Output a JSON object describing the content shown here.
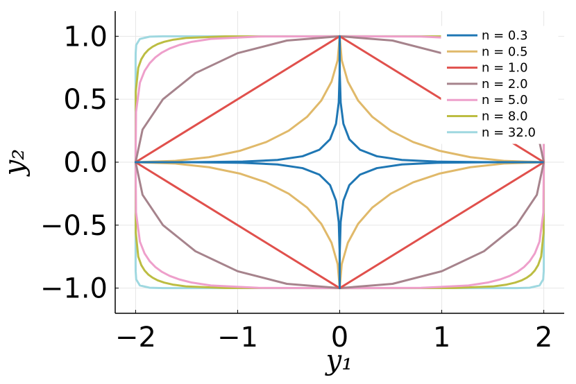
{
  "chart_data": {
    "type": "line",
    "xlabel": "y₁",
    "ylabel": "y₂",
    "xlim": [
      -2.2,
      2.2
    ],
    "ylim": [
      -1.2,
      1.2
    ],
    "xticks": [
      {
        "value": -2,
        "label": "−2"
      },
      {
        "value": -1,
        "label": "−1"
      },
      0,
      1,
      2
    ],
    "yticks": [
      {
        "value": -1,
        "label": "−1.0"
      },
      {
        "value": -0.5,
        "label": "−0.5"
      },
      {
        "value": 0,
        "label": "0.0"
      },
      {
        "value": 0.5,
        "label": "0.5"
      },
      {
        "value": 1,
        "label": "1.0"
      }
    ],
    "grid": true,
    "legend": "top-right",
    "series": [
      {
        "name": "n = 0.3",
        "color": "#1f77b4",
        "x": [
          2,
          1.408,
          0.95,
          0.61,
          0.364,
          0.1984,
          0.0944,
          0.0362,
          0.0094,
          0.0009,
          0,
          -0.0009,
          -0.0094,
          -0.0362,
          -0.0944,
          -0.1984,
          -0.364,
          -0.61,
          -0.95,
          -1.408,
          -2,
          -1.408,
          -0.95,
          -0.61,
          -0.364,
          -0.1984,
          -0.0944,
          -0.0362,
          -0.0094,
          -0.0009,
          0,
          0.0009,
          0.0094,
          0.0362,
          0.0944,
          0.1984,
          0.364,
          0.61,
          0.95,
          1.408,
          2
        ],
        "values": [
          0,
          0.0005,
          0.0047,
          0.0181,
          0.0472,
          0.0992,
          0.182,
          0.305,
          0.475,
          0.704,
          1,
          0.704,
          0.475,
          0.305,
          0.182,
          0.0992,
          0.0472,
          0.0181,
          0.0047,
          0.0005,
          0,
          -0.0005,
          -0.0047,
          -0.0181,
          -0.0472,
          -0.0992,
          -0.182,
          -0.305,
          -0.475,
          -0.704,
          -1,
          -0.704,
          -0.475,
          -0.305,
          -0.182,
          -0.0992,
          -0.0472,
          -0.0181,
          -0.0047,
          -0.0005,
          0
        ]
      },
      {
        "name": "n = 0.5",
        "color": "#e0b96a",
        "x": [
          2,
          1.62,
          1.28,
          0.98,
          0.72,
          0.5,
          0.32,
          0.18,
          0.08,
          0.02,
          0,
          -0.02,
          -0.08,
          -0.18,
          -0.32,
          -0.5,
          -0.72,
          -0.98,
          -1.28,
          -1.62,
          -2,
          -1.62,
          -1.28,
          -0.98,
          -0.72,
          -0.5,
          -0.32,
          -0.18,
          -0.08,
          -0.02,
          0,
          0.02,
          0.08,
          0.18,
          0.32,
          0.5,
          0.72,
          0.98,
          1.28,
          1.62,
          2
        ],
        "values": [
          0,
          0.01,
          0.04,
          0.09,
          0.16,
          0.25,
          0.36,
          0.49,
          0.64,
          0.81,
          1,
          0.81,
          0.64,
          0.49,
          0.36,
          0.25,
          0.16,
          0.09,
          0.04,
          0.01,
          0,
          -0.01,
          -0.04,
          -0.09,
          -0.16,
          -0.25,
          -0.36,
          -0.49,
          -0.64,
          -0.81,
          -1,
          -0.81,
          -0.64,
          -0.49,
          -0.36,
          -0.25,
          -0.16,
          -0.09,
          -0.04,
          -0.01,
          0
        ]
      },
      {
        "name": "n = 1.0",
        "color": "#e0504c",
        "x": [
          2,
          0,
          -2,
          0,
          2
        ],
        "values": [
          0,
          1,
          0,
          -1,
          0
        ]
      },
      {
        "name": "n = 2.0",
        "color": "#a6838c",
        "x": [
          2,
          1.932,
          1.732,
          1.414,
          1,
          0.518,
          0,
          -0.518,
          -1,
          -1.414,
          -1.732,
          -1.932,
          -2,
          -1.932,
          -1.732,
          -1.414,
          -1,
          -0.518,
          0,
          0.518,
          1,
          1.414,
          1.732,
          1.932,
          2
        ],
        "values": [
          0,
          0.259,
          0.5,
          0.707,
          0.866,
          0.966,
          1,
          0.966,
          0.866,
          0.707,
          0.5,
          0.259,
          0,
          -0.259,
          -0.5,
          -0.707,
          -0.866,
          -0.966,
          -1,
          -0.966,
          -0.866,
          -0.707,
          -0.5,
          -0.259,
          0
        ]
      },
      {
        "name": "n = 5.0",
        "color": "#ee9fcb",
        "x": [
          2,
          1.996,
          1.958,
          1.912,
          1.862,
          1.806,
          1.742,
          1.666,
          1.572,
          1.45,
          1.262,
          0.796,
          0,
          -0.796,
          -1.262,
          -1.45,
          -1.572,
          -1.666,
          -1.742,
          -1.806,
          -1.862,
          -1.912,
          -1.958,
          -1.996,
          -2,
          -1.996,
          -1.958,
          -1.912,
          -1.862,
          -1.806,
          -1.742,
          -1.666,
          -1.572,
          -1.45,
          -1.262,
          -0.796,
          0,
          0.796,
          1.262,
          1.45,
          1.572,
          1.666,
          1.742,
          1.806,
          1.862,
          1.912,
          1.958,
          1.996,
          2
        ],
        "values": [
          0,
          0.398,
          0.631,
          0.725,
          0.786,
          0.833,
          0.871,
          0.903,
          0.931,
          0.956,
          0.979,
          0.998,
          1,
          0.998,
          0.979,
          0.956,
          0.931,
          0.903,
          0.871,
          0.833,
          0.786,
          0.725,
          0.631,
          0.398,
          0,
          -0.398,
          -0.631,
          -0.725,
          -0.786,
          -0.833,
          -0.871,
          -0.903,
          -0.931,
          -0.956,
          -0.979,
          -0.998,
          -1,
          -0.998,
          -0.979,
          -0.956,
          -0.931,
          -0.903,
          -0.871,
          -0.833,
          -0.786,
          -0.725,
          -0.631,
          -0.398,
          0
        ]
      },
      {
        "name": "n = 8.0",
        "color": "#bcbd42",
        "x": [
          2,
          1.998,
          1.974,
          1.944,
          1.912,
          1.876,
          1.834,
          1.784,
          1.72,
          1.636,
          1.5,
          1.124,
          0,
          -1.124,
          -1.5,
          -1.636,
          -1.72,
          -1.784,
          -1.834,
          -1.876,
          -1.912,
          -1.944,
          -1.974,
          -1.998,
          -2,
          -1.998,
          -1.974,
          -1.944,
          -1.912,
          -1.876,
          -1.834,
          -1.784,
          -1.72,
          -1.636,
          -1.5,
          -1.124,
          0,
          1.124,
          1.5,
          1.636,
          1.72,
          1.784,
          1.834,
          1.876,
          1.912,
          1.944,
          1.974,
          1.998,
          2
        ],
        "values": [
          0,
          0.562,
          0.75,
          0.818,
          0.86,
          0.892,
          0.917,
          0.938,
          0.956,
          0.972,
          0.987,
          0.999,
          1,
          0.999,
          0.987,
          0.972,
          0.956,
          0.938,
          0.917,
          0.892,
          0.86,
          0.818,
          0.75,
          0.562,
          0,
          -0.562,
          -0.75,
          -0.818,
          -0.86,
          -0.892,
          -0.917,
          -0.938,
          -0.956,
          -0.972,
          -0.987,
          -0.999,
          -1,
          -0.999,
          -0.987,
          -0.972,
          -0.956,
          -0.938,
          -0.917,
          -0.892,
          -0.86,
          -0.818,
          -0.75,
          -0.562,
          0
        ]
      },
      {
        "name": "n = 32.0",
        "color": "#9fd8e0",
        "x": [
          2,
          2,
          1.9994,
          1.994,
          1.958,
          1.862,
          1.732,
          1.612,
          0,
          -1.612,
          -1.732,
          -1.862,
          -1.958,
          -1.994,
          -1.9994,
          -2,
          -2,
          -2,
          -1.9994,
          -1.994,
          -1.958,
          -1.862,
          -1.732,
          -1.612,
          0,
          1.612,
          1.732,
          1.862,
          1.958,
          1.994,
          1.9994,
          2,
          2
        ],
        "values": [
          0,
          0.806,
          0.866,
          0.931,
          0.979,
          0.997,
          0.9997,
          1,
          1,
          1,
          0.9997,
          0.997,
          0.979,
          0.931,
          0.866,
          0.806,
          0,
          -0.806,
          -0.866,
          -0.931,
          -0.979,
          -0.997,
          -0.9997,
          -1,
          -1,
          -1,
          -0.9997,
          -0.997,
          -0.979,
          -0.931,
          -0.866,
          -0.806,
          0
        ]
      }
    ]
  }
}
